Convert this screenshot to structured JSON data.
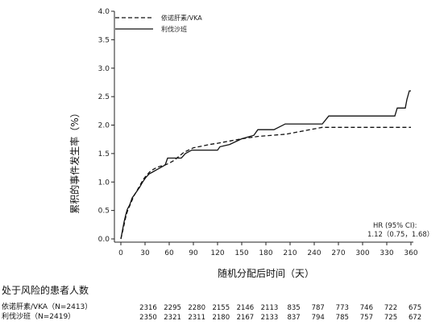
{
  "chart_data": {
    "type": "line",
    "title": "",
    "xlabel": "随机分配后时间（天）",
    "ylabel": "累积的事件发生率（%）",
    "xlim": [
      0,
      360
    ],
    "ylim": [
      0,
      4.0
    ],
    "xticks": [
      0,
      30,
      60,
      90,
      120,
      150,
      180,
      210,
      240,
      270,
      300,
      330,
      360
    ],
    "yticks": [
      "0.0",
      "0.5",
      "1.0",
      "1.5",
      "2.0",
      "2.5",
      "3.0",
      "3.5",
      "4.0"
    ],
    "grid": false,
    "legend_position": "top-left",
    "series": [
      {
        "name": "依诺肝素/VKA",
        "style": "dashed",
        "points": [
          [
            0,
            0.0
          ],
          [
            2,
            0.12
          ],
          [
            4,
            0.25
          ],
          [
            6,
            0.38
          ],
          [
            8,
            0.48
          ],
          [
            10,
            0.55
          ],
          [
            13,
            0.65
          ],
          [
            16,
            0.75
          ],
          [
            20,
            0.85
          ],
          [
            24,
            0.95
          ],
          [
            28,
            1.05
          ],
          [
            32,
            1.12
          ],
          [
            36,
            1.18
          ],
          [
            40,
            1.22
          ],
          [
            45,
            1.26
          ],
          [
            50,
            1.28
          ],
          [
            55,
            1.3
          ],
          [
            60,
            1.33
          ],
          [
            66,
            1.38
          ],
          [
            72,
            1.45
          ],
          [
            78,
            1.52
          ],
          [
            84,
            1.56
          ],
          [
            90,
            1.6
          ],
          [
            100,
            1.63
          ],
          [
            110,
            1.66
          ],
          [
            120,
            1.68
          ],
          [
            135,
            1.72
          ],
          [
            150,
            1.76
          ],
          [
            170,
            1.8
          ],
          [
            205,
            1.84
          ],
          [
            250,
            1.96
          ],
          [
            360,
            1.96
          ]
        ]
      },
      {
        "name": "利伐沙班",
        "style": "solid",
        "points": [
          [
            0,
            0.0
          ],
          [
            2,
            0.15
          ],
          [
            4,
            0.3
          ],
          [
            6,
            0.42
          ],
          [
            8,
            0.52
          ],
          [
            11,
            0.6
          ],
          [
            14,
            0.72
          ],
          [
            18,
            0.8
          ],
          [
            23,
            0.9
          ],
          [
            27,
            1.0
          ],
          [
            31,
            1.08
          ],
          [
            35,
            1.14
          ],
          [
            40,
            1.18
          ],
          [
            45,
            1.22
          ],
          [
            50,
            1.26
          ],
          [
            55,
            1.3
          ],
          [
            58,
            1.42
          ],
          [
            65,
            1.42
          ],
          [
            75,
            1.42
          ],
          [
            80,
            1.5
          ],
          [
            88,
            1.56
          ],
          [
            100,
            1.56
          ],
          [
            120,
            1.56
          ],
          [
            123,
            1.62
          ],
          [
            135,
            1.66
          ],
          [
            150,
            1.76
          ],
          [
            165,
            1.82
          ],
          [
            170,
            1.92
          ],
          [
            190,
            1.92
          ],
          [
            204,
            2.02
          ],
          [
            250,
            2.02
          ],
          [
            258,
            2.16
          ],
          [
            340,
            2.16
          ],
          [
            343,
            2.3
          ],
          [
            353,
            2.3
          ],
          [
            355,
            2.45
          ],
          [
            358,
            2.6
          ],
          [
            360,
            2.6
          ]
        ]
      }
    ],
    "annotation": {
      "line1": "HR (95% CI):",
      "line2": "1.12（0.75，1.68）"
    }
  },
  "risk_table": {
    "title": "处于风险的患者人数",
    "rows": [
      {
        "label": "依诺肝素/VKA（N=2413）",
        "values": [
          "2316",
          "2295",
          "2280",
          "2155",
          "2146",
          "2113",
          "835",
          "787",
          "773",
          "746",
          "722",
          "675"
        ]
      },
      {
        "label": "利伐沙班（N=2419）",
        "values": [
          "2350",
          "2321",
          "2311",
          "2180",
          "2167",
          "2133",
          "837",
          "794",
          "785",
          "757",
          "725",
          "672"
        ]
      }
    ]
  }
}
